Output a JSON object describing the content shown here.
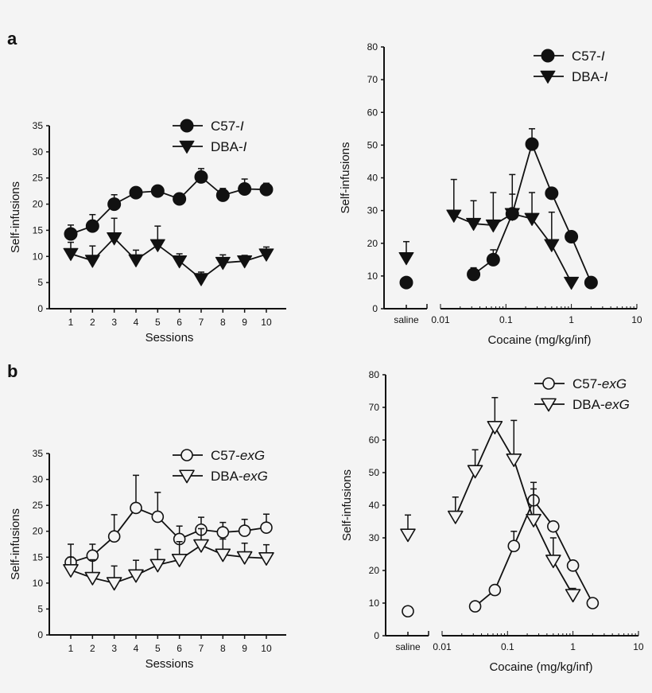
{
  "chart_data": [
    {
      "panel": "a",
      "type": "line",
      "xlabel": "Sessions",
      "ylabel": "Self-infusions",
      "ylim": [
        0,
        35
      ],
      "yticks": [
        0,
        5,
        10,
        15,
        20,
        25,
        30,
        35
      ],
      "x": [
        1,
        2,
        3,
        4,
        5,
        6,
        7,
        8,
        9,
        10
      ],
      "legend": "top-right",
      "series": [
        {
          "name": "C57-I",
          "marker": "filled-circle",
          "values": [
            14.3,
            15.8,
            20.0,
            22.2,
            22.5,
            21.0,
            25.2,
            21.7,
            22.9,
            22.8
          ],
          "error_upper": [
            16.0,
            18.0,
            21.8,
            22.6,
            22.9,
            21.4,
            26.8,
            23.0,
            24.8,
            24.0
          ]
        },
        {
          "name": "DBA-I",
          "marker": "filled-triangle-down",
          "values": [
            10.5,
            9.2,
            13.5,
            9.3,
            12.2,
            9.1,
            5.7,
            8.8,
            9.1,
            10.4
          ],
          "error_upper": [
            12.7,
            12.0,
            17.3,
            11.2,
            15.8,
            10.5,
            7.0,
            10.3,
            10.2,
            11.8
          ]
        }
      ]
    },
    {
      "panel": "a",
      "type": "line",
      "xlabel": "Cocaine (mg/kg/inf)",
      "ylabel": "Self-infusions",
      "xscale": "log",
      "xlim": [
        0.01,
        10
      ],
      "xticks": [
        "saline",
        "0.01",
        "0.1",
        "1",
        "10"
      ],
      "ylim": [
        0,
        80
      ],
      "yticks": [
        0,
        10,
        20,
        30,
        40,
        50,
        60,
        70,
        80
      ],
      "legend": "top-right",
      "series": [
        {
          "name": "C57-I",
          "marker": "filled-circle",
          "saline": {
            "y": 8,
            "error_upper": 8
          },
          "x": [
            0.032,
            0.064,
            0.125,
            0.25,
            0.5,
            1,
            2
          ],
          "values": [
            10.5,
            15,
            29,
            50.3,
            35.3,
            22,
            8
          ],
          "error_upper": [
            12.5,
            18,
            35,
            55,
            35.3,
            22,
            8
          ]
        },
        {
          "name": "DBA-I",
          "marker": "filled-triangle-down",
          "saline": {
            "y": 15.5,
            "error_upper": 20.5
          },
          "x": [
            0.016,
            0.032,
            0.064,
            0.125,
            0.25,
            0.5,
            1
          ],
          "values": [
            28.5,
            26,
            25.5,
            29,
            27.5,
            19.5,
            8
          ],
          "error_upper": [
            39.5,
            33,
            35.5,
            41,
            35.5,
            29.5,
            8
          ]
        }
      ]
    },
    {
      "panel": "b",
      "type": "line",
      "xlabel": "Sessions",
      "ylabel": "Self-infusions",
      "ylim": [
        0,
        35
      ],
      "yticks": [
        0,
        5,
        10,
        15,
        20,
        25,
        30,
        35
      ],
      "x": [
        1,
        2,
        3,
        4,
        5,
        6,
        7,
        8,
        9,
        10
      ],
      "legend": "top-right",
      "series": [
        {
          "name": "C57-exG",
          "marker": "open-circle",
          "values": [
            14.0,
            15.3,
            19.0,
            24.5,
            22.8,
            18.5,
            20.3,
            19.8,
            20.1,
            20.7
          ],
          "error_upper": [
            17.5,
            17.5,
            23.2,
            30.8,
            27.5,
            21.0,
            22.7,
            21.7,
            22.3,
            23.3
          ]
        },
        {
          "name": "DBA-exG",
          "marker": "open-triangle-down",
          "values": [
            12.5,
            11.0,
            10.0,
            11.5,
            13.5,
            14.5,
            17.3,
            15.5,
            15.0,
            14.8
          ],
          "error_upper": [
            15.0,
            14.5,
            13.3,
            14.4,
            16.5,
            18.0,
            20.5,
            18.5,
            17.7,
            17.4
          ]
        }
      ]
    },
    {
      "panel": "b",
      "type": "line",
      "xlabel": "Cocaine (mg/kg/inf)",
      "ylabel": "Self-infusions",
      "xscale": "log",
      "xlim": [
        0.01,
        10
      ],
      "xticks": [
        "saline",
        "0.01",
        "0.1",
        "1",
        "10"
      ],
      "ylim": [
        0,
        80
      ],
      "yticks": [
        0,
        10,
        20,
        30,
        40,
        50,
        60,
        70,
        80
      ],
      "legend": "top-right",
      "series": [
        {
          "name": "C57-exG",
          "marker": "open-circle",
          "saline": {
            "y": 7.5,
            "error_upper": 7.5
          },
          "x": [
            0.032,
            0.064,
            0.125,
            0.25,
            0.5,
            1,
            2
          ],
          "values": [
            9,
            14,
            27.5,
            41.5,
            33.5,
            21.5,
            10
          ],
          "error_upper": [
            9,
            14,
            32,
            47,
            33.5,
            21.5,
            10
          ]
        },
        {
          "name": "DBA-exG",
          "marker": "open-triangle-down",
          "saline": {
            "y": 31,
            "error_upper": 37
          },
          "x": [
            0.016,
            0.032,
            0.064,
            0.125,
            0.25,
            0.5,
            1
          ],
          "values": [
            36.5,
            50.5,
            64,
            54,
            35.5,
            23,
            12.5
          ],
          "error_upper": [
            42.5,
            57,
            73,
            66,
            45,
            30,
            14.5
          ]
        }
      ]
    }
  ],
  "panel_labels": [
    "a",
    "b"
  ]
}
